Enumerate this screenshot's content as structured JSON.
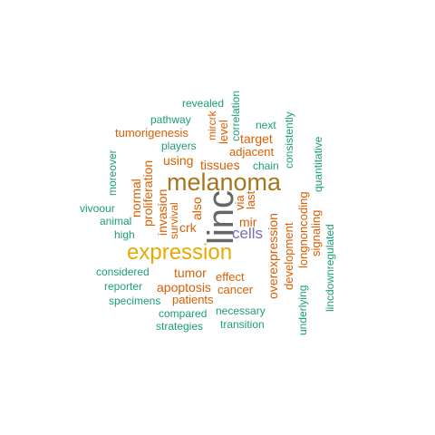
{
  "colors": {
    "green": "#1b9e77",
    "orange": "#d95f02",
    "gold": "#e6ab02",
    "olive": "#a6761d",
    "gray": "#666666",
    "purple": "#7570b3"
  },
  "words": [
    {
      "text": "linc",
      "color": "gray",
      "weight": 5
    },
    {
      "text": "melanoma",
      "color": "olive",
      "weight": 4
    },
    {
      "text": "expression",
      "color": "gold",
      "weight": 4
    },
    {
      "text": "cells",
      "color": "purple",
      "weight": 3
    },
    {
      "text": "tissues",
      "color": "orange",
      "weight": 2
    },
    {
      "text": "using",
      "color": "orange",
      "weight": 2
    },
    {
      "text": "mir",
      "color": "orange",
      "weight": 2
    },
    {
      "text": "crk",
      "color": "orange",
      "weight": 2
    },
    {
      "text": "tumor",
      "color": "orange",
      "weight": 2
    },
    {
      "text": "apoptosis",
      "color": "orange",
      "weight": 2
    },
    {
      "text": "patients",
      "color": "orange",
      "weight": 2
    },
    {
      "text": "overexpression",
      "color": "orange",
      "weight": 2
    },
    {
      "text": "proliferation",
      "color": "orange",
      "weight": 2
    },
    {
      "text": "invasion",
      "color": "orange",
      "weight": 2
    },
    {
      "text": "normal",
      "color": "orange",
      "weight": 2
    },
    {
      "text": "also",
      "color": "orange",
      "weight": 2
    },
    {
      "text": "target",
      "color": "orange",
      "weight": 2
    },
    {
      "text": "tumorigenesis",
      "color": "orange",
      "weight": 2
    },
    {
      "text": "adjacent",
      "color": "orange",
      "weight": 2
    },
    {
      "text": "effect",
      "color": "orange",
      "weight": 2
    },
    {
      "text": "cancer",
      "color": "orange",
      "weight": 2
    },
    {
      "text": "longnoncoding",
      "color": "orange",
      "weight": 2
    },
    {
      "text": "development",
      "color": "orange",
      "weight": 2
    },
    {
      "text": "signaling",
      "color": "orange",
      "weight": 2
    },
    {
      "text": "survival",
      "color": "orange",
      "weight": 2
    },
    {
      "text": "via",
      "color": "orange",
      "weight": 2
    },
    {
      "text": "last",
      "color": "orange",
      "weight": 2
    },
    {
      "text": "level",
      "color": "orange",
      "weight": 2
    },
    {
      "text": "mircrk",
      "color": "orange",
      "weight": 2
    },
    {
      "text": "revealed",
      "color": "green",
      "weight": 1
    },
    {
      "text": "correlation",
      "color": "green",
      "weight": 1
    },
    {
      "text": "pathway",
      "color": "green",
      "weight": 1
    },
    {
      "text": "next",
      "color": "green",
      "weight": 1
    },
    {
      "text": "consistently",
      "color": "green",
      "weight": 1
    },
    {
      "text": "players",
      "color": "green",
      "weight": 1
    },
    {
      "text": "chain",
      "color": "green",
      "weight": 1
    },
    {
      "text": "quantitative",
      "color": "green",
      "weight": 1
    },
    {
      "text": "moreover",
      "color": "green",
      "weight": 1
    },
    {
      "text": "vivoour",
      "color": "green",
      "weight": 1
    },
    {
      "text": "animal",
      "color": "green",
      "weight": 1
    },
    {
      "text": "high",
      "color": "green",
      "weight": 1
    },
    {
      "text": "considered",
      "color": "green",
      "weight": 1
    },
    {
      "text": "reporter",
      "color": "green",
      "weight": 1
    },
    {
      "text": "specimens",
      "color": "green",
      "weight": 1
    },
    {
      "text": "compared",
      "color": "green",
      "weight": 1
    },
    {
      "text": "necessary",
      "color": "green",
      "weight": 1
    },
    {
      "text": "strategies",
      "color": "green",
      "weight": 1
    },
    {
      "text": "transition",
      "color": "green",
      "weight": 1
    },
    {
      "text": "underlying",
      "color": "green",
      "weight": 1
    },
    {
      "text": "lincdownregulated",
      "color": "green",
      "weight": 1
    }
  ]
}
